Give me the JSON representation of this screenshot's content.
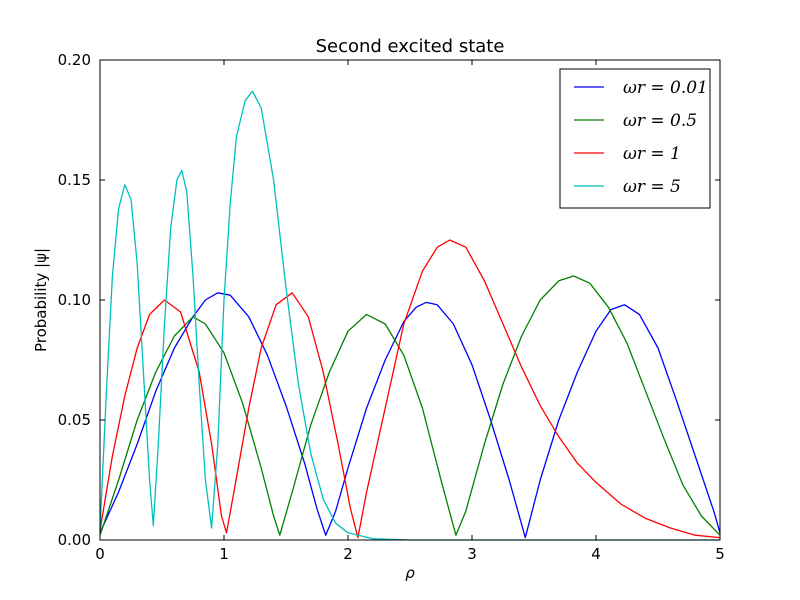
{
  "chart_data": {
    "type": "line",
    "title": "Second excited state",
    "xlabel": "ρ",
    "ylabel": "Probability |ψ|",
    "xlim": [
      0,
      5
    ],
    "ylim": [
      0,
      0.2
    ],
    "x_ticks": [
      "0",
      "1",
      "2",
      "3",
      "4",
      "5"
    ],
    "y_ticks": [
      "0.00",
      "0.05",
      "0.10",
      "0.15",
      "0.20"
    ],
    "grid": false,
    "legend_position": "top-right",
    "series": [
      {
        "name": "ωr = 0.01",
        "color": "#0000ff",
        "points": [
          [
            0,
            0.003
          ],
          [
            0.15,
            0.02
          ],
          [
            0.3,
            0.04
          ],
          [
            0.45,
            0.062
          ],
          [
            0.6,
            0.08
          ],
          [
            0.75,
            0.093
          ],
          [
            0.85,
            0.1
          ],
          [
            0.95,
            0.103
          ],
          [
            1.05,
            0.102
          ],
          [
            1.2,
            0.093
          ],
          [
            1.35,
            0.077
          ],
          [
            1.5,
            0.056
          ],
          [
            1.65,
            0.032
          ],
          [
            1.75,
            0.013
          ],
          [
            1.82,
            0.002
          ],
          [
            1.9,
            0.012
          ],
          [
            2.0,
            0.03
          ],
          [
            2.15,
            0.055
          ],
          [
            2.3,
            0.075
          ],
          [
            2.45,
            0.091
          ],
          [
            2.55,
            0.097
          ],
          [
            2.63,
            0.099
          ],
          [
            2.72,
            0.098
          ],
          [
            2.85,
            0.09
          ],
          [
            3.0,
            0.073
          ],
          [
            3.15,
            0.05
          ],
          [
            3.3,
            0.025
          ],
          [
            3.43,
            0.001
          ],
          [
            3.55,
            0.025
          ],
          [
            3.7,
            0.05
          ],
          [
            3.85,
            0.07
          ],
          [
            4.0,
            0.087
          ],
          [
            4.12,
            0.096
          ],
          [
            4.23,
            0.098
          ],
          [
            4.35,
            0.094
          ],
          [
            4.5,
            0.08
          ],
          [
            4.65,
            0.058
          ],
          [
            4.8,
            0.035
          ],
          [
            4.95,
            0.012
          ],
          [
            5.0,
            0.003
          ]
        ]
      },
      {
        "name": "ωr = 0.5",
        "color": "#008000",
        "points": [
          [
            0,
            0.002
          ],
          [
            0.15,
            0.025
          ],
          [
            0.3,
            0.05
          ],
          [
            0.45,
            0.07
          ],
          [
            0.6,
            0.085
          ],
          [
            0.75,
            0.093
          ],
          [
            0.85,
            0.09
          ],
          [
            1.0,
            0.078
          ],
          [
            1.15,
            0.057
          ],
          [
            1.3,
            0.03
          ],
          [
            1.4,
            0.01
          ],
          [
            1.45,
            0.002
          ],
          [
            1.55,
            0.02
          ],
          [
            1.7,
            0.048
          ],
          [
            1.85,
            0.07
          ],
          [
            2.0,
            0.087
          ],
          [
            2.15,
            0.094
          ],
          [
            2.3,
            0.09
          ],
          [
            2.45,
            0.077
          ],
          [
            2.6,
            0.055
          ],
          [
            2.75,
            0.025
          ],
          [
            2.87,
            0.002
          ],
          [
            2.95,
            0.012
          ],
          [
            3.1,
            0.04
          ],
          [
            3.25,
            0.065
          ],
          [
            3.4,
            0.085
          ],
          [
            3.55,
            0.1
          ],
          [
            3.7,
            0.108
          ],
          [
            3.82,
            0.11
          ],
          [
            3.95,
            0.107
          ],
          [
            4.1,
            0.097
          ],
          [
            4.25,
            0.082
          ],
          [
            4.4,
            0.062
          ],
          [
            4.55,
            0.042
          ],
          [
            4.7,
            0.023
          ],
          [
            4.85,
            0.01
          ],
          [
            5.0,
            0.002
          ]
        ]
      },
      {
        "name": "ωr = 1",
        "color": "#ff0000",
        "points": [
          [
            0,
            0.004
          ],
          [
            0.1,
            0.035
          ],
          [
            0.2,
            0.06
          ],
          [
            0.3,
            0.08
          ],
          [
            0.4,
            0.094
          ],
          [
            0.52,
            0.1
          ],
          [
            0.65,
            0.095
          ],
          [
            0.8,
            0.07
          ],
          [
            0.9,
            0.04
          ],
          [
            0.98,
            0.01
          ],
          [
            1.02,
            0.003
          ],
          [
            1.08,
            0.02
          ],
          [
            1.2,
            0.055
          ],
          [
            1.3,
            0.08
          ],
          [
            1.42,
            0.098
          ],
          [
            1.55,
            0.103
          ],
          [
            1.68,
            0.093
          ],
          [
            1.8,
            0.07
          ],
          [
            1.92,
            0.04
          ],
          [
            2.02,
            0.013
          ],
          [
            2.08,
            0.001
          ],
          [
            2.15,
            0.02
          ],
          [
            2.3,
            0.055
          ],
          [
            2.45,
            0.09
          ],
          [
            2.6,
            0.112
          ],
          [
            2.72,
            0.122
          ],
          [
            2.82,
            0.125
          ],
          [
            2.95,
            0.122
          ],
          [
            3.1,
            0.108
          ],
          [
            3.25,
            0.09
          ],
          [
            3.4,
            0.072
          ],
          [
            3.55,
            0.056
          ],
          [
            3.7,
            0.043
          ],
          [
            3.85,
            0.032
          ],
          [
            4.0,
            0.024
          ],
          [
            4.2,
            0.015
          ],
          [
            4.4,
            0.009
          ],
          [
            4.6,
            0.005
          ],
          [
            4.8,
            0.002
          ],
          [
            5.0,
            0.001
          ]
        ]
      },
      {
        "name": "ωr = 5",
        "color": "#00bfbf",
        "points": [
          [
            0,
            0.004
          ],
          [
            0.05,
            0.06
          ],
          [
            0.1,
            0.11
          ],
          [
            0.15,
            0.138
          ],
          [
            0.2,
            0.148
          ],
          [
            0.25,
            0.142
          ],
          [
            0.3,
            0.115
          ],
          [
            0.35,
            0.07
          ],
          [
            0.4,
            0.025
          ],
          [
            0.43,
            0.006
          ],
          [
            0.47,
            0.04
          ],
          [
            0.52,
            0.09
          ],
          [
            0.57,
            0.13
          ],
          [
            0.62,
            0.15
          ],
          [
            0.66,
            0.154
          ],
          [
            0.7,
            0.145
          ],
          [
            0.75,
            0.11
          ],
          [
            0.8,
            0.065
          ],
          [
            0.85,
            0.025
          ],
          [
            0.9,
            0.005
          ],
          [
            0.95,
            0.04
          ],
          [
            1.0,
            0.1
          ],
          [
            1.05,
            0.14
          ],
          [
            1.1,
            0.168
          ],
          [
            1.17,
            0.183
          ],
          [
            1.23,
            0.187
          ],
          [
            1.3,
            0.18
          ],
          [
            1.4,
            0.15
          ],
          [
            1.5,
            0.105
          ],
          [
            1.6,
            0.065
          ],
          [
            1.7,
            0.036
          ],
          [
            1.8,
            0.017
          ],
          [
            1.9,
            0.007
          ],
          [
            2.0,
            0.003
          ],
          [
            2.2,
            0.0005
          ],
          [
            2.5,
            0
          ],
          [
            3.0,
            0
          ],
          [
            4.0,
            0
          ],
          [
            5.0,
            0
          ]
        ]
      }
    ]
  }
}
